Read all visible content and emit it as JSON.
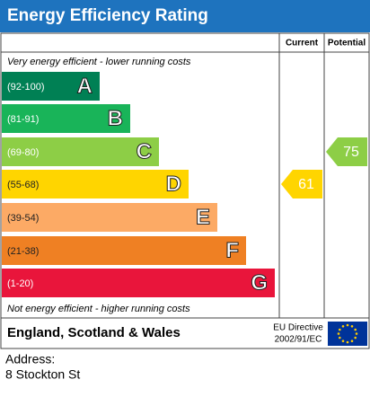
{
  "header": {
    "title": "Energy Efficiency Rating"
  },
  "columns": {
    "current": "Current",
    "potential": "Potential"
  },
  "top_note": "Very energy efficient - lower running costs",
  "bottom_note": "Not energy efficient - higher running costs",
  "bands": [
    {
      "range": "(92-100)",
      "letter": "A",
      "color": "#008054"
    },
    {
      "range": "(81-91)",
      "letter": "B",
      "color": "#19b459"
    },
    {
      "range": "(69-80)",
      "letter": "C",
      "color": "#8dce46"
    },
    {
      "range": "(55-68)",
      "letter": "D",
      "color": "#ffd500"
    },
    {
      "range": "(39-54)",
      "letter": "E",
      "color": "#fcaa65"
    },
    {
      "range": "(21-38)",
      "letter": "F",
      "color": "#ef8023"
    },
    {
      "range": "(1-20)",
      "letter": "G",
      "color": "#e9153b"
    }
  ],
  "current": {
    "value": 61
  },
  "potential": {
    "value": 75
  },
  "footer": {
    "region": "England, Scotland & Wales",
    "directive_line1": "EU Directive",
    "directive_line2": "2002/91/EC"
  },
  "address": {
    "label": "Address:",
    "line": "8 Stockton St"
  }
}
